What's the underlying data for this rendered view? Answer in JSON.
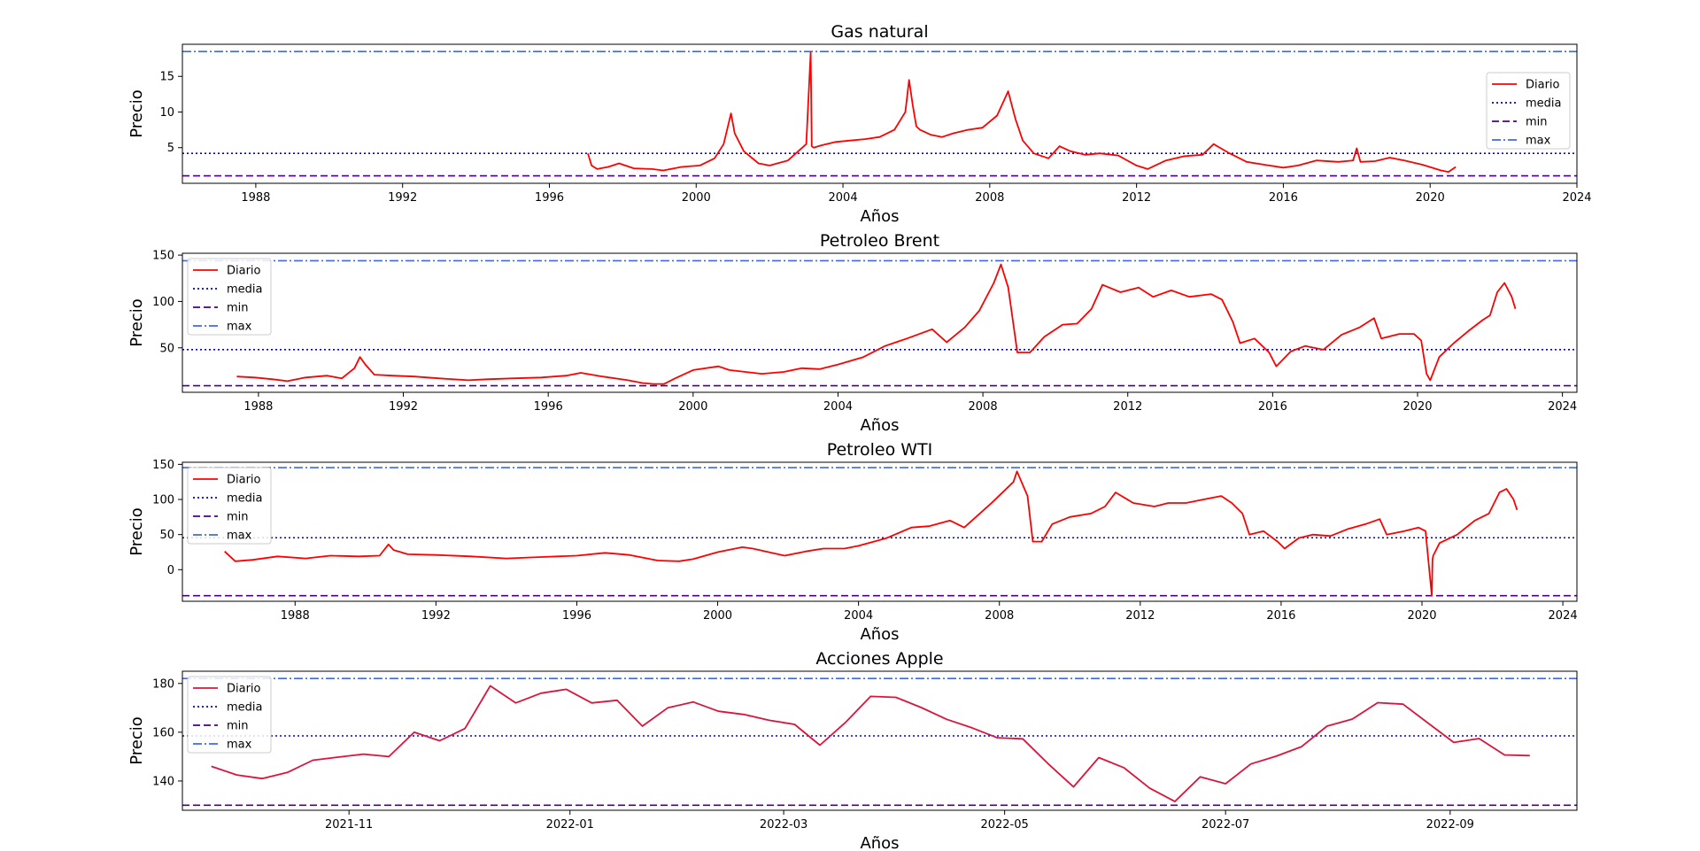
{
  "figure": {
    "background": "#ffffff"
  },
  "chart_data": [
    {
      "type": "line",
      "title": "Gas natural",
      "xlabel": "Años",
      "ylabel": "Precio",
      "x_type": "year",
      "xlim": [
        1986.0,
        2024.0
      ],
      "ylim": [
        0.0,
        19.5
      ],
      "xticks": [
        "1988",
        "1992",
        "1996",
        "2000",
        "2004",
        "2008",
        "2012",
        "2016",
        "2020",
        "2024"
      ],
      "yticks": [
        5,
        10,
        15
      ],
      "legend_position": "center-right",
      "legend": [
        "Diario",
        "media",
        "min",
        "max"
      ],
      "series": [
        {
          "name": "Diario",
          "color": "#ff0000",
          "x": [
            1997.05,
            1997.15,
            1997.3,
            1997.6,
            1997.9,
            1998.3,
            1998.8,
            1999.1,
            1999.6,
            2000.1,
            2000.5,
            2000.75,
            2000.95,
            2001.05,
            2001.3,
            2001.7,
            2002.0,
            2002.5,
            2003.0,
            2003.12,
            2003.15,
            2003.2,
            2003.4,
            2003.8,
            2004.2,
            2004.6,
            2005.0,
            2005.4,
            2005.7,
            2005.8,
            2005.9,
            2006.0,
            2006.1,
            2006.4,
            2006.7,
            2007.0,
            2007.4,
            2007.8,
            2008.2,
            2008.5,
            2008.7,
            2008.9,
            2009.2,
            2009.6,
            2009.9,
            2010.2,
            2010.6,
            2011.0,
            2011.5,
            2012.0,
            2012.3,
            2012.8,
            2013.3,
            2013.8,
            2014.1,
            2014.2,
            2014.5,
            2015.0,
            2015.5,
            2016.0,
            2016.4,
            2016.9,
            2017.5,
            2017.9,
            2018.0,
            2018.1,
            2018.5,
            2018.9,
            2019.3,
            2019.8,
            2020.3,
            2020.5,
            2020.7
          ],
          "y": [
            4.2,
            2.5,
            2.0,
            2.3,
            2.8,
            2.1,
            2.0,
            1.8,
            2.3,
            2.5,
            3.5,
            5.5,
            9.8,
            7.0,
            4.5,
            2.8,
            2.5,
            3.2,
            5.5,
            18.4,
            5.2,
            5.0,
            5.3,
            5.8,
            6.0,
            6.2,
            6.5,
            7.5,
            10.0,
            14.5,
            11.0,
            8.0,
            7.5,
            6.8,
            6.5,
            7.0,
            7.5,
            7.8,
            9.5,
            12.9,
            9.0,
            6.0,
            4.2,
            3.5,
            5.2,
            4.5,
            4.0,
            4.2,
            3.9,
            2.5,
            2.0,
            3.2,
            3.8,
            4.0,
            5.5,
            5.2,
            4.3,
            3.0,
            2.6,
            2.2,
            2.5,
            3.2,
            3.0,
            3.2,
            4.9,
            3.0,
            3.1,
            3.6,
            3.2,
            2.6,
            1.8,
            1.6,
            2.3
          ]
        }
      ],
      "reference_lines": [
        {
          "name": "media",
          "value": 4.2,
          "color": "#0000cd",
          "style": "dotted"
        },
        {
          "name": "min",
          "value": 1.05,
          "color": "#4b0082",
          "style": "dashed"
        },
        {
          "name": "max",
          "value": 18.48,
          "color": "#4169e1",
          "style": "dashdot"
        }
      ]
    },
    {
      "type": "line",
      "title": "Petroleo Brent",
      "xlabel": "Años",
      "ylabel": "Precio",
      "x_type": "year",
      "xlim": [
        1985.9,
        2024.4
      ],
      "ylim": [
        2.0,
        152.0
      ],
      "xticks": [
        "1988",
        "1992",
        "1996",
        "2000",
        "2004",
        "2008",
        "2012",
        "2016",
        "2020",
        "2024"
      ],
      "yticks": [
        50,
        100,
        150
      ],
      "legend_position": "top-left",
      "legend": [
        "Diario",
        "media",
        "min",
        "max"
      ],
      "series": [
        {
          "name": "Diario",
          "color": "#ff0000",
          "x": [
            1987.4,
            1987.9,
            1988.4,
            1988.8,
            1989.3,
            1989.9,
            1990.3,
            1990.65,
            1990.8,
            1990.95,
            1991.2,
            1991.7,
            1992.3,
            1993.0,
            1993.8,
            1994.3,
            1995.0,
            1995.8,
            1996.5,
            1996.9,
            1997.5,
            1998.2,
            1998.6,
            1998.9,
            1999.2,
            1999.5,
            2000.0,
            2000.7,
            2001.0,
            2001.9,
            2002.5,
            2003.0,
            2003.5,
            2004.0,
            2004.7,
            2005.3,
            2005.9,
            2006.6,
            2007.0,
            2007.5,
            2007.9,
            2008.3,
            2008.5,
            2008.7,
            2008.95,
            2009.3,
            2009.7,
            2010.2,
            2010.6,
            2011.0,
            2011.3,
            2011.8,
            2012.3,
            2012.7,
            2013.2,
            2013.7,
            2014.3,
            2014.6,
            2014.9,
            2015.1,
            2015.5,
            2015.9,
            2016.1,
            2016.5,
            2016.9,
            2017.4,
            2017.9,
            2018.4,
            2018.8,
            2019.0,
            2019.5,
            2019.9,
            2020.1,
            2020.25,
            2020.35,
            2020.6,
            2021.0,
            2021.4,
            2021.8,
            2022.0,
            2022.2,
            2022.4,
            2022.6,
            2022.7
          ],
          "y": [
            19,
            18,
            16,
            14,
            18,
            20,
            17,
            28,
            40,
            32,
            21,
            20,
            19,
            17,
            15,
            16,
            17,
            18,
            20,
            23,
            19,
            15,
            12,
            11,
            11,
            17,
            26,
            30,
            26,
            22,
            24,
            28,
            27,
            32,
            40,
            52,
            60,
            70,
            56,
            72,
            90,
            120,
            140,
            115,
            45,
            45,
            62,
            75,
            76,
            92,
            118,
            110,
            115,
            105,
            112,
            105,
            108,
            102,
            78,
            55,
            60,
            45,
            30,
            46,
            52,
            48,
            64,
            72,
            82,
            60,
            65,
            65,
            58,
            22,
            15,
            40,
            55,
            68,
            80,
            85,
            110,
            120,
            105,
            92
          ],
          "anchors_note": ""
        }
      ],
      "reference_lines": [
        {
          "name": "media",
          "value": 48.0,
          "color": "#0000cd",
          "style": "dotted"
        },
        {
          "name": "min",
          "value": 9.1,
          "color": "#4b0082",
          "style": "dashed"
        },
        {
          "name": "max",
          "value": 143.95,
          "color": "#4169e1",
          "style": "dashdot"
        }
      ]
    },
    {
      "type": "line",
      "title": "Petroleo WTI",
      "xlabel": "Años",
      "ylabel": "Precio",
      "x_type": "year",
      "xlim": [
        1984.8,
        2024.4
      ],
      "ylim": [
        -45.0,
        153.0
      ],
      "xticks": [
        "1988",
        "1992",
        "1996",
        "2000",
        "2004",
        "2008",
        "2012",
        "2016",
        "2020",
        "2024"
      ],
      "yticks": [
        0,
        50,
        100,
        150
      ],
      "legend_position": "top-left",
      "legend": [
        "Diario",
        "media",
        "min",
        "max"
      ],
      "series": [
        {
          "name": "Diario",
          "color": "#ff0000",
          "x": [
            1986.0,
            1986.3,
            1986.8,
            1987.5,
            1988.3,
            1989.0,
            1989.8,
            1990.4,
            1990.65,
            1990.8,
            1991.2,
            1992.0,
            1993.0,
            1994.0,
            1995.0,
            1996.0,
            1996.8,
            1997.5,
            1998.3,
            1998.9,
            1999.3,
            2000.0,
            2000.7,
            2001.0,
            2001.9,
            2002.5,
            2003.0,
            2003.6,
            2004.0,
            2004.8,
            2005.5,
            2006.0,
            2006.6,
            2007.0,
            2007.8,
            2008.4,
            2008.5,
            2008.8,
            2008.95,
            2009.2,
            2009.5,
            2010.0,
            2010.6,
            2011.0,
            2011.3,
            2011.8,
            2012.4,
            2012.8,
            2013.3,
            2013.8,
            2014.3,
            2014.6,
            2014.9,
            2015.1,
            2015.5,
            2015.9,
            2016.1,
            2016.5,
            2016.9,
            2017.4,
            2017.9,
            2018.4,
            2018.8,
            2019.0,
            2019.5,
            2019.9,
            2020.1,
            2020.28,
            2020.3,
            2020.32,
            2020.5,
            2021.0,
            2021.5,
            2021.9,
            2022.2,
            2022.4,
            2022.6,
            2022.7
          ],
          "y": [
            26,
            12,
            14,
            19,
            16,
            20,
            19,
            20,
            36,
            28,
            22,
            21,
            19,
            16,
            18,
            20,
            24,
            21,
            13,
            12,
            15,
            25,
            32,
            30,
            20,
            26,
            30,
            30,
            34,
            45,
            60,
            62,
            70,
            60,
            96,
            125,
            140,
            105,
            40,
            40,
            65,
            75,
            80,
            90,
            110,
            95,
            90,
            95,
            95,
            100,
            105,
            95,
            80,
            50,
            55,
            40,
            30,
            45,
            50,
            48,
            58,
            65,
            72,
            50,
            55,
            60,
            55,
            -37,
            15,
            20,
            38,
            50,
            70,
            80,
            110,
            115,
            100,
            85
          ]
        }
      ],
      "reference_lines": [
        {
          "name": "media",
          "value": 45.5,
          "color": "#0000cd",
          "style": "dotted"
        },
        {
          "name": "min",
          "value": -36.98,
          "color": "#4b0082",
          "style": "dashed"
        },
        {
          "name": "max",
          "value": 145.31,
          "color": "#4169e1",
          "style": "dashdot"
        }
      ]
    },
    {
      "type": "line",
      "title": "Acciones Apple",
      "xlabel": "Años",
      "ylabel": "Precio",
      "x_type": "date",
      "xlim": [
        "2021-09-16",
        "2022-10-06"
      ],
      "ylim": [
        128.0,
        185.0
      ],
      "xticks": [
        "2021-11",
        "2022-01",
        "2022-03",
        "2022-05",
        "2022-07",
        "2022-09"
      ],
      "yticks": [
        140,
        160,
        180
      ],
      "legend_position": "top-left",
      "legend": [
        "Diario",
        "media",
        "min",
        "max"
      ],
      "series": [
        {
          "name": "Diario",
          "color": "#dc143c",
          "dates": [
            "2021-09-24",
            "2021-10-01",
            "2021-10-08",
            "2021-10-15",
            "2021-10-22",
            "2021-10-29",
            "2021-11-05",
            "2021-11-12",
            "2021-11-19",
            "2021-11-26",
            "2021-12-03",
            "2021-12-10",
            "2021-12-17",
            "2021-12-24",
            "2021-12-31",
            "2022-01-07",
            "2022-01-14",
            "2022-01-21",
            "2022-01-28",
            "2022-02-04",
            "2022-02-11",
            "2022-02-18",
            "2022-02-25",
            "2022-03-04",
            "2022-03-11",
            "2022-03-18",
            "2022-03-25",
            "2022-04-01",
            "2022-04-08",
            "2022-04-15",
            "2022-04-22",
            "2022-04-29",
            "2022-05-06",
            "2022-05-13",
            "2022-05-20",
            "2022-05-27",
            "2022-06-03",
            "2022-06-10",
            "2022-06-17",
            "2022-06-24",
            "2022-07-01",
            "2022-07-08",
            "2022-07-15",
            "2022-07-22",
            "2022-07-29",
            "2022-08-05",
            "2022-08-12",
            "2022-08-19",
            "2022-08-26",
            "2022-09-02",
            "2022-09-09",
            "2022-09-16",
            "2022-09-23"
          ],
          "y": [
            146.0,
            142.5,
            141.0,
            143.5,
            148.5,
            149.8,
            151.0,
            150.0,
            160.0,
            156.5,
            161.5,
            179.0,
            172.0,
            176.0,
            177.6,
            172.0,
            173.1,
            162.5,
            170.0,
            172.4,
            168.6,
            167.3,
            164.9,
            163.2,
            154.7,
            163.9,
            174.7,
            174.3,
            170.1,
            165.3,
            161.8,
            157.7,
            157.3,
            147.1,
            137.6,
            149.6,
            145.4,
            137.1,
            131.6,
            141.7,
            138.9,
            147.0,
            150.2,
            154.1,
            162.5,
            165.4,
            172.1,
            171.5,
            163.6,
            155.8,
            157.4,
            150.7,
            150.4
          ]
        }
      ],
      "reference_lines": [
        {
          "name": "media",
          "value": 158.5,
          "color": "#0000cd",
          "style": "dotted"
        },
        {
          "name": "min",
          "value": 130.06,
          "color": "#4b0082",
          "style": "dashed"
        },
        {
          "name": "max",
          "value": 182.01,
          "color": "#4169e1",
          "style": "dashdot"
        }
      ]
    }
  ]
}
